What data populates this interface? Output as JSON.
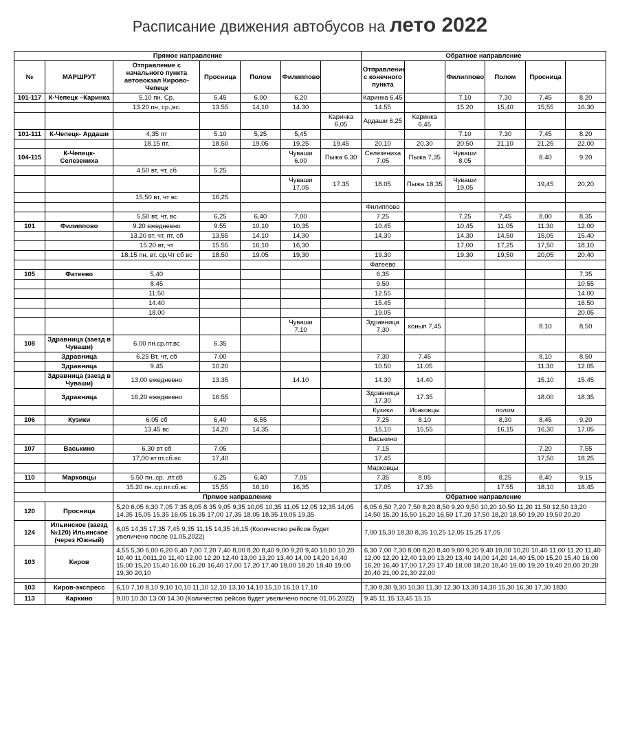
{
  "title_prefix": "Расписание движения автобусов на",
  "title_highlight": "лето 2022",
  "headers": {
    "forward": "Прямое направление",
    "backward": "Обратное направление",
    "num": "№",
    "route": "МАРШРУТ",
    "departure": "Отправление с начального пункта автовокзал Кирово-Чепецк",
    "prosnitsa": "Просница",
    "polom": "Полом",
    "filippovo": "Филиппово",
    "dep_end": "Отправление с конечного пункта"
  },
  "rows": [
    {
      "n": "101-117",
      "r": "К-Чепецк –Каринка",
      "d": "5.10 пн. Ср.",
      "c": [
        "5.45",
        "6.00",
        "6.20",
        "",
        "Каринка 6.45",
        "",
        "7.10",
        "7.30",
        "7,45",
        "8.20"
      ]
    },
    {
      "n": "",
      "r": "",
      "d": "13.20 пн, ср.,вс.",
      "c": [
        "13.55",
        "14,10",
        "14.30",
        "",
        "14.55",
        "",
        "15.20",
        "15,40",
        "15,55",
        "16,30"
      ]
    },
    {
      "n": "",
      "r": "",
      "d": "",
      "c": [
        "",
        "",
        "",
        "Каринка 6,05",
        "Ардаши 6,25",
        "Каринка 6,45",
        "",
        "",
        "",
        ""
      ]
    },
    {
      "n": "101-111",
      "r": "К-Чепецк- Ардаши",
      "d": "4,35 пт",
      "c": [
        "5.10",
        "5,25",
        "5,45",
        "",
        "",
        "",
        "7.10",
        "7.30",
        "7,45",
        "8.20"
      ]
    },
    {
      "n": "",
      "r": "",
      "d": "18.15  пт.",
      "c": [
        "18.50",
        "19,05",
        "19.25",
        "19,45",
        "20,10",
        "20.30",
        "20,50",
        "21,10",
        "21.25",
        "22,00"
      ]
    },
    {
      "n": "104-115",
      "r": "К-Чепецк- Селезениха",
      "d": "",
      "c": [
        "",
        "",
        "Чуваши 6,00",
        "Пыжа 6.30",
        "Селезениха 7,05",
        "Пыжа 7,35",
        "Чуваши 8.05",
        "",
        "8.40",
        "9.20"
      ]
    },
    {
      "n": "",
      "r": "",
      "d": "4.50   вт, чт, сб",
      "c": [
        "5.25",
        "",
        "",
        "",
        "",
        "",
        "",
        "",
        "",
        ""
      ]
    },
    {
      "n": "",
      "r": "",
      "d": "",
      "c": [
        "",
        "",
        "Чуваши 17,05",
        "17.35",
        "18.05",
        "Пыжа 18,35",
        "Чуваши 19,05",
        "",
        "19,45",
        "20,20"
      ]
    },
    {
      "n": "",
      "r": "",
      "d": "15,50  вт, чт вс",
      "c": [
        "16,25",
        "",
        "",
        "",
        "",
        "",
        "",
        "",
        "",
        ""
      ]
    },
    {
      "n": "",
      "r": "",
      "d": "",
      "c": [
        "",
        "",
        "",
        "",
        "Филиппово",
        "",
        "",
        "",
        "",
        ""
      ]
    },
    {
      "n": "",
      "r": "",
      "d": "5,50 вт, чт, вс",
      "c": [
        "6,25",
        "6,40",
        "7,00",
        "",
        "7,25",
        "",
        "7,25",
        "7,45",
        "8,00",
        "8,35"
      ]
    },
    {
      "n": "101",
      "r": "Филиппово",
      "d": "9.20   ежедневно",
      "c": [
        "9.55",
        "10.10",
        "10,35",
        "",
        "10.45",
        "",
        "10.45",
        "11.05",
        "11.30",
        "12.00"
      ]
    },
    {
      "n": "",
      "r": "",
      "d": "13.20 вт, чт, пт, сб",
      "c": [
        "13.55",
        "14.10",
        "14,30",
        "",
        "14,30",
        "",
        "14,30",
        "14,50",
        "15,05",
        "15,40"
      ]
    },
    {
      "n": "",
      "r": "",
      "d": "15.20 вт, чт",
      "c": [
        "15.55",
        "16,10",
        "16,30",
        "",
        "",
        "",
        "17,00",
        "17,25",
        "17,50",
        "18,10"
      ]
    },
    {
      "n": "",
      "r": "",
      "d": "18.15 пн, вт. ср,Чт сб вс",
      "c": [
        "18.50",
        "19.05",
        "19,30",
        "",
        "19,30",
        "",
        "19,30",
        "19,50",
        "20,05",
        "20,40"
      ]
    },
    {
      "n": "",
      "r": "",
      "d": "",
      "c": [
        "",
        "",
        "",
        "",
        "Фатеево",
        "",
        "",
        "",
        "",
        ""
      ]
    },
    {
      "n": "105",
      "r": "Фатеево",
      "d": "5,40",
      "c": [
        "",
        "",
        "",
        "",
        "6,35",
        "",
        "",
        "",
        "",
        "7,35"
      ]
    },
    {
      "n": "",
      "r": "",
      "d": "8.45",
      "c": [
        "",
        "",
        "",
        "",
        "9.50",
        "",
        "",
        "",
        "",
        "10.55"
      ]
    },
    {
      "n": "",
      "r": "",
      "d": "11.50",
      "c": [
        "",
        "",
        "",
        "",
        "12.55",
        "",
        "",
        "",
        "",
        "14.00"
      ]
    },
    {
      "n": "",
      "r": "",
      "d": "14.40",
      "c": [
        "",
        "",
        "",
        "",
        "15.45",
        "",
        "",
        "",
        "",
        "16.50"
      ]
    },
    {
      "n": "",
      "r": "",
      "d": "18.00",
      "c": [
        "",
        "",
        "",
        "",
        "19.05",
        "",
        "",
        "",
        "",
        "20.05"
      ]
    },
    {
      "n": "",
      "r": "",
      "d": "",
      "c": [
        "",
        "",
        "Чуваши 7.10",
        "",
        "Здравница 7,30",
        "конып 7,45",
        "",
        "",
        "8.10",
        "8,50"
      ]
    },
    {
      "n": "108",
      "r": "Здравница (заезд в Чуваши)",
      "d": "6.00  пн.ср.пт.вс",
      "c": [
        "6.35",
        "",
        "",
        "",
        "",
        "",
        "",
        "",
        "",
        ""
      ]
    },
    {
      "n": "",
      "r": "Здравница",
      "d": "6.25 Вт, чт, сб",
      "c": [
        "7.00",
        "",
        "",
        "",
        "7,30",
        "7.45",
        "",
        "",
        "8,10",
        "8,50"
      ]
    },
    {
      "n": "",
      "r": "Здравница",
      "d": "9.45",
      "c": [
        "10.20",
        "",
        "",
        "",
        "10.50",
        "11.05",
        "",
        "",
        "11.30",
        "12.05"
      ]
    },
    {
      "n": "",
      "r": "Здравница (заезд в Чуваши)",
      "d": "13.00 ежедневно",
      "c": [
        "13.35",
        "",
        "14.10",
        "",
        "14.30",
        "14.40",
        "",
        "",
        "15.10",
        "15.45"
      ]
    },
    {
      "n": "",
      "r": "Здравница",
      "d": "16,20 ежедневно",
      "c": [
        "16.55",
        "",
        "",
        "",
        "Здравница 17.30",
        "17.35",
        "",
        "",
        "18.00",
        "18,35"
      ]
    },
    {
      "n": "",
      "r": "",
      "d": "",
      "c": [
        "",
        "",
        "",
        "",
        "Кузики",
        "Исаковцы",
        "",
        "полом",
        "",
        ""
      ]
    },
    {
      "n": "106",
      "r": "Кузики",
      "d": "6.05 сб",
      "c": [
        "6,40",
        "6,55",
        "",
        "",
        "7,25",
        "8,10",
        "",
        "8,30",
        "8,45",
        "9,20"
      ]
    },
    {
      "n": "",
      "r": "",
      "d": "13.45 вс",
      "c": [
        "14,20",
        "14,35",
        "",
        "",
        "15,10",
        "15,55",
        "",
        "16,15",
        "16,30",
        "17,05"
      ]
    },
    {
      "n": "",
      "r": "",
      "d": "",
      "c": [
        "",
        "",
        "",
        "",
        "Васькино",
        "",
        "",
        "",
        "",
        ""
      ]
    },
    {
      "n": "107",
      "r": "Васькино",
      "d": "6.30  вт сб",
      "c": [
        "7.05",
        "",
        "",
        "",
        "7,15",
        "",
        "",
        "",
        "7.20",
        "7,55"
      ]
    },
    {
      "n": "",
      "r": "",
      "d": "17,00  вт.пт.сб.вс",
      "c": [
        "17,40",
        "",
        "",
        "",
        "17,45",
        "",
        "",
        "",
        "17,50",
        "18,25"
      ]
    },
    {
      "n": "",
      "r": "",
      "d": "",
      "c": [
        "",
        "",
        "",
        "",
        "Марковцы",
        "",
        "",
        "",
        "",
        ""
      ]
    },
    {
      "n": "110",
      "r": "Марковцы",
      "d": "5.50 пн..ср. .пт.сб",
      "c": [
        "6.25",
        "6,40",
        "7.05",
        "",
        "7.35",
        "8.05",
        "",
        "8.25",
        "8,40",
        "9,15"
      ]
    },
    {
      "n": "",
      "r": "",
      "d": "15.20 пн..ср.пт.сб.вс",
      "c": [
        "15,55",
        "16,10",
        "16,35",
        "",
        "17.05",
        "17.35",
        "",
        "17.55",
        "18.10",
        "18,45"
      ]
    }
  ],
  "section2_fwd": "Прямое направление",
  "section2_bwd": "Обратное направление",
  "wide_rows": [
    {
      "n": "120",
      "r": "Просница",
      "f": "5,20 6,05 6,30 7,05 7,35 8,05 8,35 9,05 9,35 10,05 10,35 11,05 12,05 12,35 14,05 14,35 15,05 15,35 16,05 16,35 17,00 17,35 18,05 18,35 19,05 19,35",
      "b": "6,05 6,50 7,20 7,50 8,20 8,50 9,20 9,50 10,20 10,50 11,20 11,50 12,50 13,20 14,50 15,20 15,50 16,20 16,50 17,20 17,50 18,20 18,50 19,20 19,50 20,20"
    },
    {
      "n": "124",
      "r": "Ильинское (заезд №120) Ильинское (через Южный)",
      "f": "6,05 14,35 17,35\n\n7,45 9,35 11,15 14,35  16,15 (Количество рейсов будет увеличено после 01.05.2022)",
      "b": "7,00 15,30 18,30\n\n8,35 10,25 12,05 15,25 17,05"
    },
    {
      "n": "103",
      "r": "Киров",
      "f": "4,55 5,30 6,00 6,20 6,40 7,00 7,20 7,40 8,00 8,20 8,40 9,00 9,20 9,40 10,00 10,20 10,40 11,0011,20 11,40 12,00 12,20 12,40 13,00 13,20 13,40 14,00 14,20 14,40 15,00 15,20 15,40 16,00 16,20 16,40 17,00 17,20 17,40 18,00 18,20 18,40 19,00 19,30 20,10",
      "b": "6,30 7,00 7,30 8,00 8,20 8,40 9,00 9,20 9,40 10,00 10,20 10,40 11,00 11,20 11,40 12,00 12,20 12,40 13,00 13,20 13,40 14,00 14,20 14,40 15,00 15,20 15,40 16,00 16,20 16,40 17,00 17,20 17,40 18,00 18,20 18,40 19,00 19,20 19,40 20,00 20,20 20,40 21,00 21,30 22,00"
    },
    {
      "n": "",
      "r": "",
      "f": "",
      "b": ""
    },
    {
      "n": "103",
      "r": "Киров-экспресс",
      "f": "6,10 7,10 8,10 9,10 10,10 11,10 12,10 13,10 14,10 15,10 16,10 17,10",
      "b": "7,30 8,30 9,30 10,30 11,30 12,30 13,30 14,30 15,30 16,30 17,30 1830"
    },
    {
      "n": "113",
      "r": "Каркино",
      "f": "9.00 10.30  13.00  14.30  (Количество рейсов будет увеличено после 01.05.2022)",
      "b": "9.45  11.15  13.45   15.15"
    }
  ]
}
